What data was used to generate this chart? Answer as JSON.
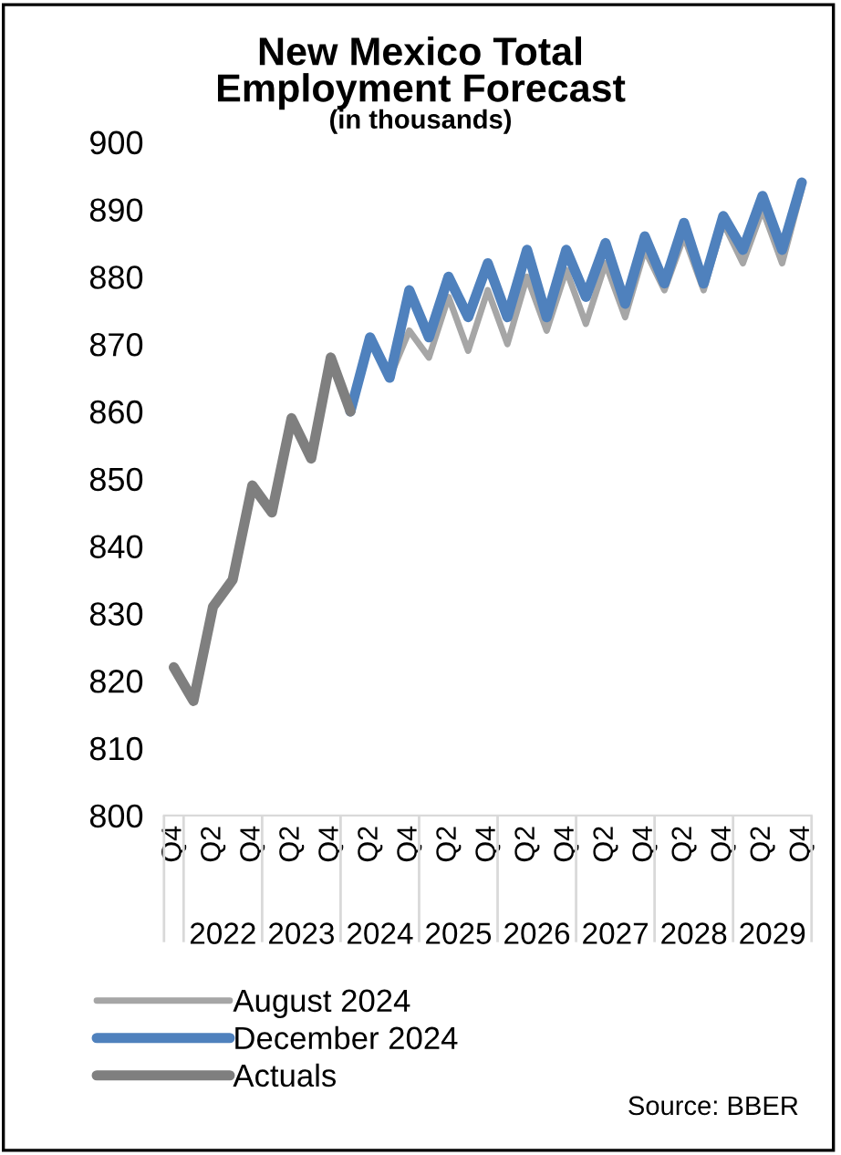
{
  "chart_data": {
    "type": "line",
    "title": "New Mexico Total\nEmployment Forecast",
    "subtitle": "(in thousands)",
    "categories": [
      "Q4",
      null,
      "Q2",
      null,
      "Q4",
      null,
      "Q2",
      null,
      "Q4",
      null,
      "Q2",
      null,
      "Q4",
      null,
      "Q2",
      null,
      "Q4",
      null,
      "Q2",
      null,
      "Q4",
      null,
      "Q2",
      null,
      "Q4",
      null,
      "Q2",
      null,
      "Q4",
      null,
      "Q2",
      null,
      "Q4"
    ],
    "series": [
      {
        "name": "August 2024",
        "color": "#a6a6a6",
        "values": [
          null,
          null,
          null,
          null,
          null,
          null,
          null,
          null,
          null,
          860,
          871,
          865,
          872,
          868,
          877,
          869,
          878,
          870,
          880,
          872,
          881,
          873,
          882,
          874,
          884,
          878,
          886,
          878,
          888,
          882,
          890,
          882,
          893
        ]
      },
      {
        "name": "December 2024",
        "color": "#4f81bd",
        "values": [
          null,
          null,
          null,
          null,
          null,
          null,
          null,
          null,
          null,
          860,
          871,
          865,
          878,
          871,
          880,
          874,
          882,
          874,
          884,
          874,
          884,
          877,
          885,
          876,
          886,
          879,
          888,
          879,
          889,
          884,
          892,
          884,
          894
        ]
      },
      {
        "name": "Actuals",
        "color": "#7f7f7f",
        "values": [
          822,
          817,
          831,
          835,
          849,
          845,
          859,
          853,
          868,
          860,
          null,
          null,
          null,
          null,
          null,
          null,
          null,
          null,
          null,
          null,
          null,
          null,
          null,
          null,
          null,
          null,
          null,
          null,
          null,
          null,
          null,
          null,
          null
        ]
      }
    ],
    "ylim": [
      800,
      900
    ],
    "yticks": [
      800,
      810,
      820,
      830,
      840,
      850,
      860,
      870,
      880,
      890,
      900
    ],
    "grid": false,
    "legend": "bottom",
    "marker": "none",
    "line_style": "solid",
    "annotations": [
      "2022",
      "2023",
      "2024",
      "2025",
      "2026",
      "2027",
      "2028",
      "2029",
      "Source: BBER"
    ]
  }
}
